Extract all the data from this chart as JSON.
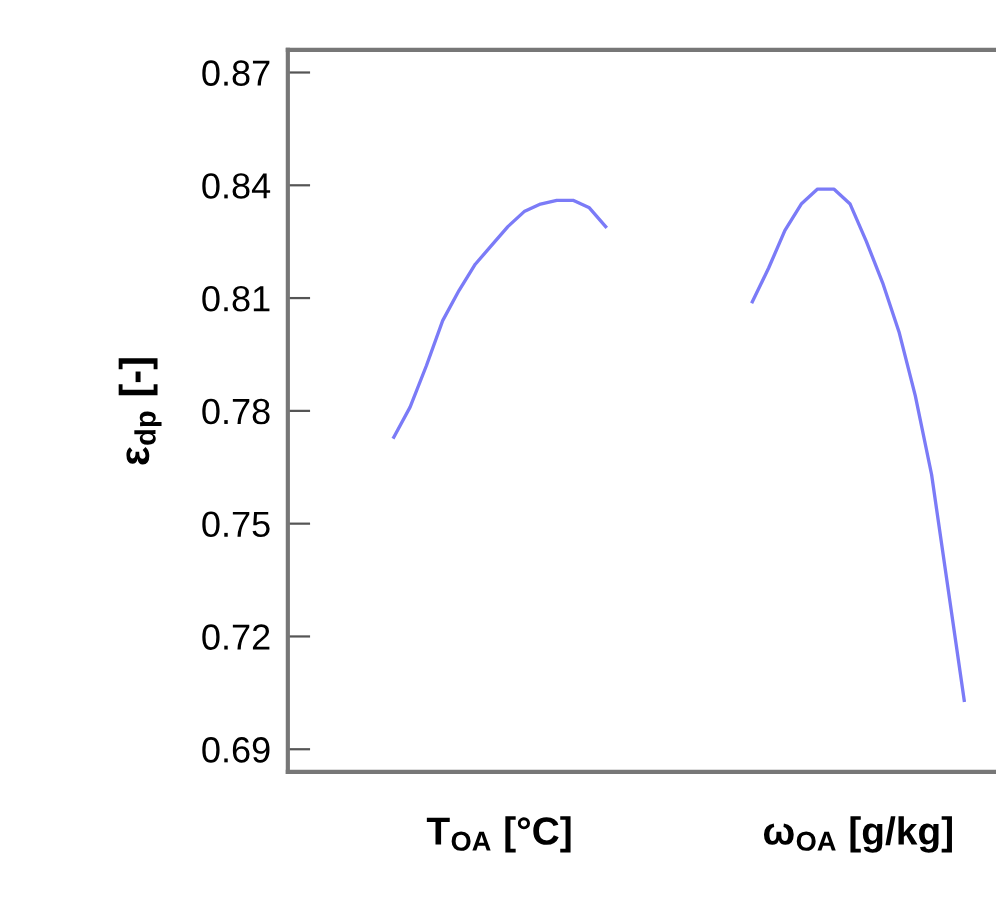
{
  "chart_data": {
    "type": "line",
    "ylabel": "ε$_{dp}$ [-]",
    "annotations": [
      "T$_{OA}$ [°C]",
      "ω$_{OA}$ [g/kg]"
    ],
    "categories": [
      null,
      null,
      null,
      null,
      null,
      null,
      null,
      null,
      null,
      null,
      null,
      null,
      null,
      null,
      null,
      null,
      null,
      null,
      null,
      null,
      null,
      null,
      null,
      null,
      null,
      null,
      null,
      null,
      null,
      null,
      null,
      null,
      null,
      null,
      null,
      null,
      null,
      null,
      null,
      null,
      null,
      null,
      null,
      null
    ],
    "series": [
      {
        "color": "#7b7bf7",
        "values": [
          null,
          null,
          null,
          null,
          null,
          null,
          0.773,
          0.781,
          0.792,
          0.804,
          0.812,
          0.819,
          0.824,
          0.829,
          0.833,
          0.835,
          0.836,
          0.836,
          0.834,
          0.829,
          null,
          null,
          null,
          null,
          null,
          null,
          null,
          null,
          0.809,
          0.818,
          0.828,
          0.835,
          0.839,
          0.839,
          0.835,
          0.825,
          0.814,
          0.801,
          0.784,
          0.763,
          0.733,
          0.703,
          null,
          null
        ]
      }
    ],
    "ylim": [
      0.684,
      0.876
    ],
    "yticks": [
      0.69,
      0.72,
      0.75,
      0.78,
      0.81,
      0.84,
      0.87
    ],
    "tick_labels": "y",
    "grid": false,
    "legend": false,
    "marker": "none",
    "line_style": "solid"
  }
}
